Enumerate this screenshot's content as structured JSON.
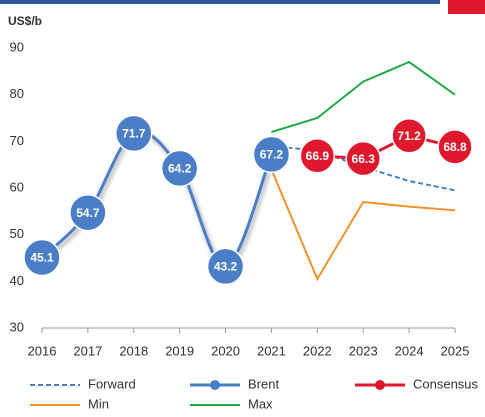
{
  "chart_data": {
    "type": "line",
    "y_label": "US$/b",
    "x": [
      2016,
      2017,
      2018,
      2019,
      2020,
      2021,
      2022,
      2023,
      2024,
      2025
    ],
    "xlim": [
      2016,
      2025
    ],
    "xticks": [
      2016,
      2017,
      2018,
      2019,
      2020,
      2021,
      2022,
      2023,
      2024,
      2025
    ],
    "ylim": [
      30,
      90
    ],
    "yticks": [
      30,
      40,
      50,
      60,
      70,
      80,
      90
    ],
    "grid": false,
    "legend": "bottom",
    "series": [
      {
        "name": "Forward",
        "color": "#4a7fc8",
        "dash": true,
        "values": [
          null,
          null,
          null,
          null,
          null,
          69,
          68,
          64.5,
          61.5,
          59.5
        ]
      },
      {
        "name": "Brent",
        "color": "#4a7fc8",
        "marker": true,
        "smooth": true,
        "values": [
          45.1,
          54.7,
          71.7,
          64.2,
          43.2,
          67.2,
          null,
          null,
          null,
          null
        ]
      },
      {
        "name": "Consensus",
        "color": "#e0182d",
        "marker": true,
        "values": [
          null,
          null,
          null,
          null,
          null,
          null,
          66.9,
          66.3,
          71.2,
          68.8
        ]
      },
      {
        "name": "Min",
        "color": "#f0922e",
        "values": [
          null,
          null,
          null,
          null,
          null,
          64,
          40.5,
          57,
          56,
          55.2
        ]
      },
      {
        "name": "Max",
        "color": "#1faa4a",
        "values": [
          null,
          null,
          null,
          null,
          null,
          72,
          75,
          82.8,
          87,
          80
        ]
      }
    ]
  }
}
